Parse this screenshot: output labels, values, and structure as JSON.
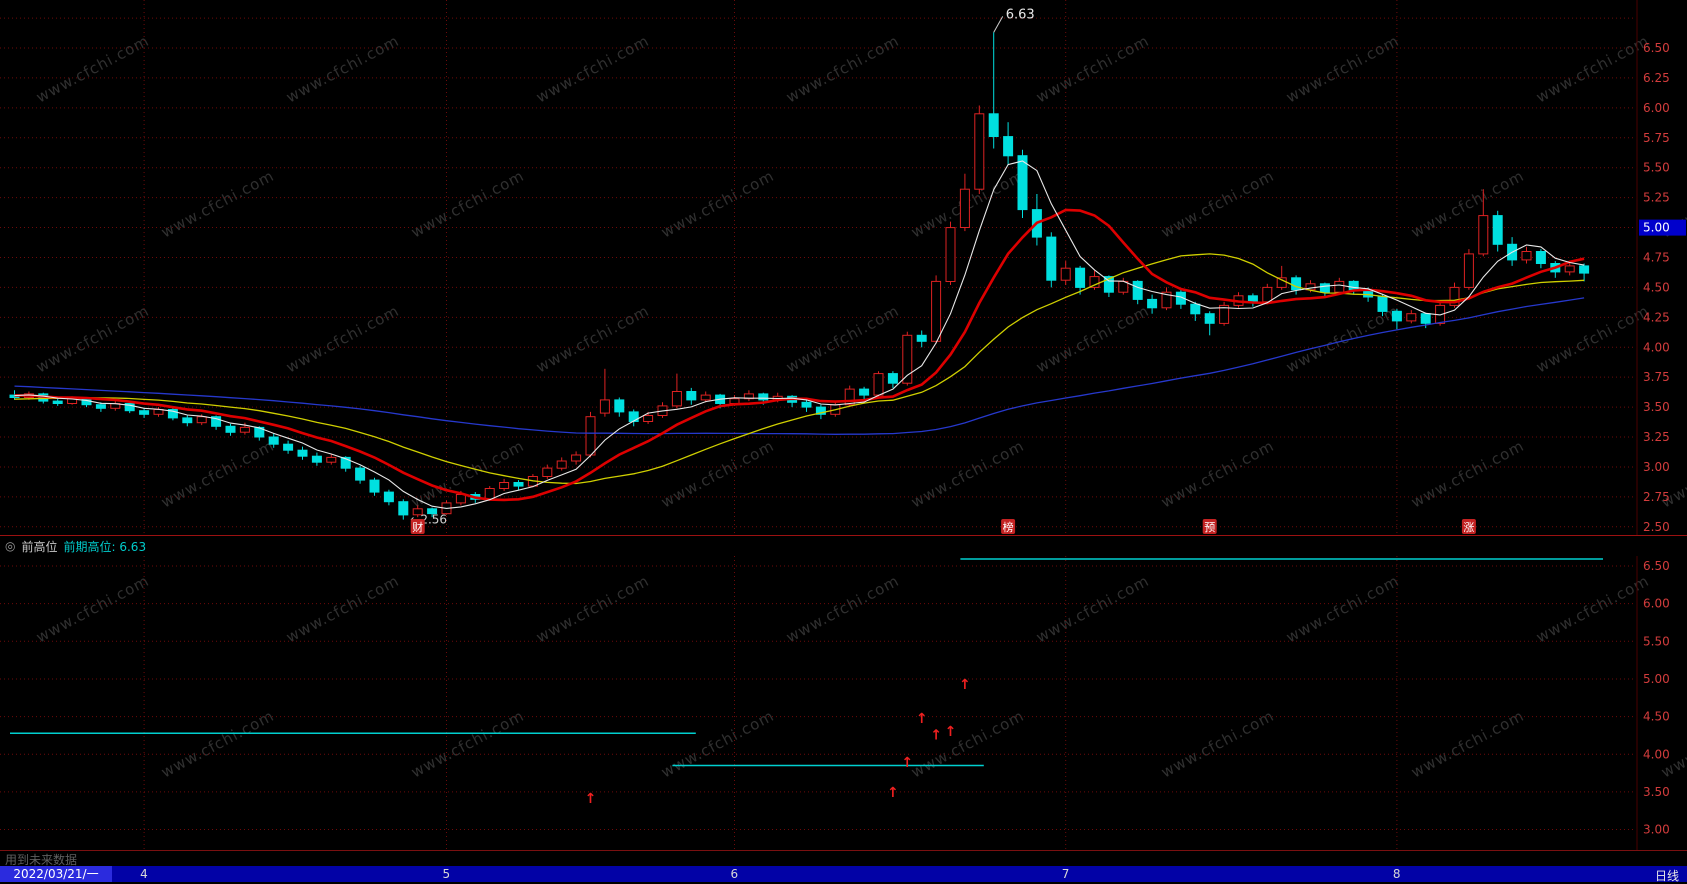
{
  "watermark_text": "www.cfchi.com",
  "colors": {
    "background": "#000000",
    "up": "#dd2222",
    "down": "#00e0e0",
    "ma5": "#e8e8e8",
    "ma10": "#dd0000",
    "ma20": "#cfcf00",
    "ma60": "#2638cc",
    "grid": "#6e0a0a",
    "axis_separator": "#4a0000",
    "axis_text": "#d23c3c",
    "price_marker_bg": "#0000cc",
    "price_marker_text": "#ffffff",
    "panel_line": "#00cfcf",
    "arrow": "#ee2020",
    "event_mark_bg": "#c42222"
  },
  "chart_data": [
    {
      "type": "candlestick",
      "y_axis": {
        "min": 2.5,
        "max": 6.75,
        "tick_step": 0.25,
        "ticks": [
          6.5,
          6.25,
          6.0,
          5.75,
          5.5,
          5.25,
          5.0,
          4.75,
          4.5,
          4.25,
          4.0,
          3.75,
          3.5,
          3.25,
          3.0,
          2.75,
          2.5
        ],
        "grid_extra": [
          6.75
        ],
        "highlight_value": 5.0
      },
      "month_ticks": [
        {
          "day": 9,
          "label": "4"
        },
        {
          "day": 30,
          "label": "5"
        },
        {
          "day": 50,
          "label": "6"
        },
        {
          "day": 73,
          "label": "7"
        },
        {
          "day": 96,
          "label": "8"
        }
      ],
      "annotations": {
        "peak_label": "6.63",
        "peak_day": 68,
        "peak_value": 6.63,
        "low_label": "←2.56",
        "low_day": 27,
        "low_value": 2.56
      },
      "event_marks": [
        {
          "day": 28,
          "label": "财"
        },
        {
          "day": 69,
          "label": "榜"
        },
        {
          "day": 83,
          "label": "预"
        },
        {
          "day": 101,
          "label": "涨"
        }
      ],
      "ma_lines": [
        {
          "name": "MA60",
          "period": 60,
          "color_key": "ma60",
          "width": 1.3
        },
        {
          "name": "MA20",
          "period": 20,
          "color_key": "ma20",
          "width": 1.3
        },
        {
          "name": "MA10",
          "period": 10,
          "color_key": "ma10",
          "width": 2.6
        },
        {
          "name": "MA5",
          "period": 5,
          "color_key": "ma5",
          "width": 1.1
        }
      ],
      "prehistory_closes": [
        3.92,
        3.9,
        3.94,
        3.91,
        3.88,
        3.9,
        3.86,
        3.88,
        3.84,
        3.86,
        3.82,
        3.84,
        3.8,
        3.82,
        3.78,
        3.8,
        3.76,
        3.78,
        3.74,
        3.76,
        3.72,
        3.74,
        3.7,
        3.72,
        3.68,
        3.7,
        3.66,
        3.68,
        3.64,
        3.66,
        3.62,
        3.64,
        3.6,
        3.62,
        3.58,
        3.6,
        3.56,
        3.58,
        3.54,
        3.56,
        3.52,
        3.54,
        3.5,
        3.52,
        3.48,
        3.5,
        3.52,
        3.54,
        3.56,
        3.58,
        3.6,
        3.62,
        3.64,
        3.6,
        3.58,
        3.56,
        3.58,
        3.6,
        3.62,
        3.6
      ],
      "candles": [
        [
          3.6,
          3.64,
          3.56,
          3.58
        ],
        [
          3.58,
          3.63,
          3.56,
          3.61
        ],
        [
          3.61,
          3.62,
          3.53,
          3.55
        ],
        [
          3.55,
          3.58,
          3.51,
          3.53
        ],
        [
          3.53,
          3.59,
          3.52,
          3.57
        ],
        [
          3.57,
          3.58,
          3.5,
          3.52
        ],
        [
          3.52,
          3.54,
          3.46,
          3.49
        ],
        [
          3.49,
          3.55,
          3.47,
          3.53
        ],
        [
          3.53,
          3.54,
          3.45,
          3.47
        ],
        [
          3.47,
          3.49,
          3.41,
          3.44
        ],
        [
          3.44,
          3.5,
          3.42,
          3.48
        ],
        [
          3.48,
          3.49,
          3.39,
          3.41
        ],
        [
          3.41,
          3.43,
          3.34,
          3.37
        ],
        [
          3.37,
          3.44,
          3.35,
          3.42
        ],
        [
          3.42,
          3.43,
          3.31,
          3.34
        ],
        [
          3.34,
          3.36,
          3.26,
          3.29
        ],
        [
          3.29,
          3.37,
          3.27,
          3.33
        ],
        [
          3.33,
          3.34,
          3.22,
          3.25
        ],
        [
          3.25,
          3.28,
          3.16,
          3.19
        ],
        [
          3.19,
          3.22,
          3.11,
          3.14
        ],
        [
          3.14,
          3.17,
          3.06,
          3.09
        ],
        [
          3.09,
          3.12,
          3.01,
          3.04
        ],
        [
          3.04,
          3.11,
          3.02,
          3.08
        ],
        [
          3.08,
          3.09,
          2.96,
          2.99
        ],
        [
          2.99,
          3.01,
          2.86,
          2.89
        ],
        [
          2.89,
          2.91,
          2.76,
          2.79
        ],
        [
          2.79,
          2.81,
          2.68,
          2.71
        ],
        [
          2.71,
          2.73,
          2.56,
          2.6
        ],
        [
          2.6,
          2.68,
          2.58,
          2.65
        ],
        [
          2.65,
          2.66,
          2.58,
          2.61
        ],
        [
          2.61,
          2.72,
          2.6,
          2.7
        ],
        [
          2.7,
          2.8,
          2.68,
          2.77
        ],
        [
          2.77,
          2.79,
          2.7,
          2.73
        ],
        [
          2.73,
          2.84,
          2.72,
          2.82
        ],
        [
          2.82,
          2.9,
          2.8,
          2.87
        ],
        [
          2.87,
          2.89,
          2.81,
          2.84
        ],
        [
          2.84,
          2.94,
          2.83,
          2.92
        ],
        [
          2.92,
          3.02,
          2.9,
          2.99
        ],
        [
          2.99,
          3.08,
          2.97,
          3.05
        ],
        [
          3.05,
          3.13,
          3.02,
          3.1
        ],
        [
          3.1,
          3.46,
          3.08,
          3.42
        ],
        [
          3.45,
          3.82,
          3.42,
          3.56
        ],
        [
          3.56,
          3.58,
          3.42,
          3.46
        ],
        [
          3.46,
          3.48,
          3.34,
          3.38
        ],
        [
          3.38,
          3.46,
          3.36,
          3.43
        ],
        [
          3.43,
          3.54,
          3.41,
          3.51
        ],
        [
          3.51,
          3.78,
          3.49,
          3.63
        ],
        [
          3.63,
          3.66,
          3.52,
          3.56
        ],
        [
          3.56,
          3.63,
          3.54,
          3.6
        ],
        [
          3.6,
          3.61,
          3.49,
          3.53
        ],
        [
          3.53,
          3.6,
          3.51,
          3.57
        ],
        [
          3.57,
          3.64,
          3.55,
          3.61
        ],
        [
          3.61,
          3.62,
          3.52,
          3.56
        ],
        [
          3.56,
          3.62,
          3.54,
          3.59
        ],
        [
          3.59,
          3.6,
          3.5,
          3.54
        ],
        [
          3.54,
          3.56,
          3.46,
          3.5
        ],
        [
          3.5,
          3.52,
          3.4,
          3.44
        ],
        [
          3.44,
          3.55,
          3.42,
          3.52
        ],
        [
          3.52,
          3.68,
          3.5,
          3.65
        ],
        [
          3.65,
          3.67,
          3.56,
          3.6
        ],
        [
          3.6,
          3.8,
          3.58,
          3.78
        ],
        [
          3.78,
          3.8,
          3.66,
          3.7
        ],
        [
          3.7,
          4.13,
          3.68,
          4.1
        ],
        [
          4.1,
          4.14,
          4.0,
          4.05
        ],
        [
          4.05,
          4.6,
          4.03,
          4.55
        ],
        [
          4.55,
          5.05,
          4.52,
          5.0
        ],
        [
          5.0,
          5.45,
          4.97,
          5.32
        ],
        [
          5.32,
          6.02,
          5.28,
          5.95
        ],
        [
          5.95,
          6.63,
          5.66,
          5.76
        ],
        [
          5.76,
          5.88,
          5.52,
          5.6
        ],
        [
          5.6,
          5.65,
          5.08,
          5.15
        ],
        [
          5.15,
          5.28,
          4.85,
          4.92
        ],
        [
          4.92,
          4.96,
          4.5,
          4.56
        ],
        [
          4.56,
          4.72,
          4.52,
          4.66
        ],
        [
          4.66,
          4.68,
          4.44,
          4.5
        ],
        [
          4.5,
          4.64,
          4.48,
          4.59
        ],
        [
          4.59,
          4.6,
          4.42,
          4.46
        ],
        [
          4.46,
          4.58,
          4.44,
          4.55
        ],
        [
          4.55,
          4.56,
          4.36,
          4.4
        ],
        [
          4.4,
          4.44,
          4.28,
          4.33
        ],
        [
          4.33,
          4.5,
          4.31,
          4.46
        ],
        [
          4.46,
          4.48,
          4.32,
          4.36
        ],
        [
          4.36,
          4.38,
          4.22,
          4.28
        ],
        [
          4.28,
          4.3,
          4.1,
          4.2
        ],
        [
          4.2,
          4.38,
          4.18,
          4.35
        ],
        [
          4.35,
          4.46,
          4.33,
          4.43
        ],
        [
          4.43,
          4.45,
          4.34,
          4.38
        ],
        [
          4.38,
          4.53,
          4.36,
          4.5
        ],
        [
          4.5,
          4.68,
          4.48,
          4.58
        ],
        [
          4.58,
          4.6,
          4.44,
          4.48
        ],
        [
          4.48,
          4.56,
          4.46,
          4.53
        ],
        [
          4.53,
          4.54,
          4.42,
          4.46
        ],
        [
          4.46,
          4.58,
          4.44,
          4.55
        ],
        [
          4.55,
          4.56,
          4.44,
          4.48
        ],
        [
          4.48,
          4.5,
          4.38,
          4.42
        ],
        [
          4.42,
          4.44,
          4.26,
          4.3
        ],
        [
          4.3,
          4.32,
          4.15,
          4.22
        ],
        [
          4.22,
          4.31,
          4.2,
          4.28
        ],
        [
          4.28,
          4.29,
          4.16,
          4.2
        ],
        [
          4.2,
          4.38,
          4.18,
          4.35
        ],
        [
          4.35,
          4.54,
          4.33,
          4.5
        ],
        [
          4.5,
          4.82,
          4.48,
          4.78
        ],
        [
          4.78,
          5.32,
          4.76,
          5.1
        ],
        [
          5.1,
          5.14,
          4.8,
          4.86
        ],
        [
          4.86,
          4.92,
          4.68,
          4.73
        ],
        [
          4.73,
          4.84,
          4.7,
          4.8
        ],
        [
          4.8,
          4.82,
          4.66,
          4.7
        ],
        [
          4.7,
          4.72,
          4.58,
          4.63
        ],
        [
          4.63,
          4.72,
          4.6,
          4.68
        ],
        [
          4.68,
          4.7,
          4.55,
          4.62
        ]
      ]
    },
    {
      "type": "line",
      "name": "前高位",
      "param_label": "前期高位: 6.63",
      "y_axis": {
        "min": 3.0,
        "max": 6.5,
        "tick_step": 0.5,
        "ticks": [
          6.5,
          6.0,
          5.5,
          5.0,
          4.5,
          4.0,
          3.5,
          3.0
        ]
      },
      "segments": [
        {
          "from_day": 0,
          "to_day": 47,
          "value": 4.28
        },
        {
          "from_day": 46,
          "to_day": 67,
          "value": 3.85
        },
        {
          "from_day": 66,
          "to_day": 110,
          "value": 6.63
        }
      ],
      "buy_arrows": [
        {
          "day": 40,
          "value": 3.5
        },
        {
          "day": 61,
          "value": 3.58
        },
        {
          "day": 62,
          "value": 3.98
        },
        {
          "day": 63,
          "value": 4.56
        },
        {
          "day": 64,
          "value": 4.34
        },
        {
          "day": 65,
          "value": 4.39
        },
        {
          "day": 66,
          "value": 5.01
        }
      ]
    }
  ],
  "indicator_header": {
    "collapse_icon": "◎",
    "name": "前高位",
    "param_label": "前期高位: 6.63"
  },
  "status": {
    "future_data_note": "用到未来数据"
  },
  "bottom_bar": {
    "date": "2022/03/21/一",
    "period": "日线"
  }
}
